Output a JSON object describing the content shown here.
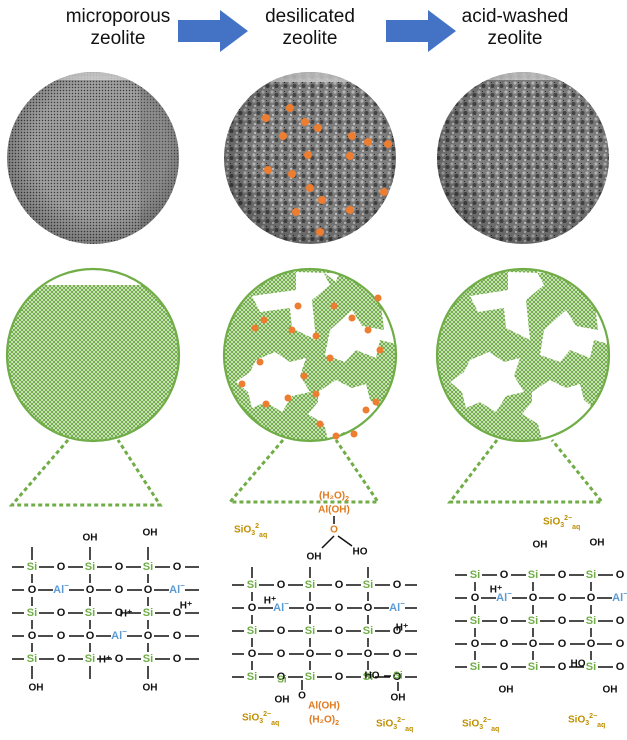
{
  "titles": [
    {
      "line1": "microporous",
      "line2": "zeolite"
    },
    {
      "line1": "desilicated",
      "line2": "zeolite"
    },
    {
      "line1": "acid-washed",
      "line2": "zeolite"
    }
  ],
  "colors": {
    "arrow": "#4472C4",
    "framework_green": "#70AD47",
    "al_blue": "#5B9BD5",
    "species_orange": "#E07B20",
    "silicate_gold": "#BF8F00",
    "particle_orange": "#ED7D31"
  },
  "atoms": {
    "si": "Si",
    "o": "O",
    "al": "Al",
    "minus": "−",
    "oh": "OH",
    "ho": "HO",
    "h_plus": "H⁺"
  },
  "species": {
    "silicate": "SiO",
    "silicate_sub": "3",
    "silicate_charge_a": "2",
    "silicate_charge_b": "2−",
    "silicate_phase": "aq",
    "al_oh": "Al(OH)",
    "water_pair": "(H₂O)",
    "water_sub": "2"
  },
  "icons": [
    "right-arrow-icon",
    "right-arrow-icon"
  ]
}
